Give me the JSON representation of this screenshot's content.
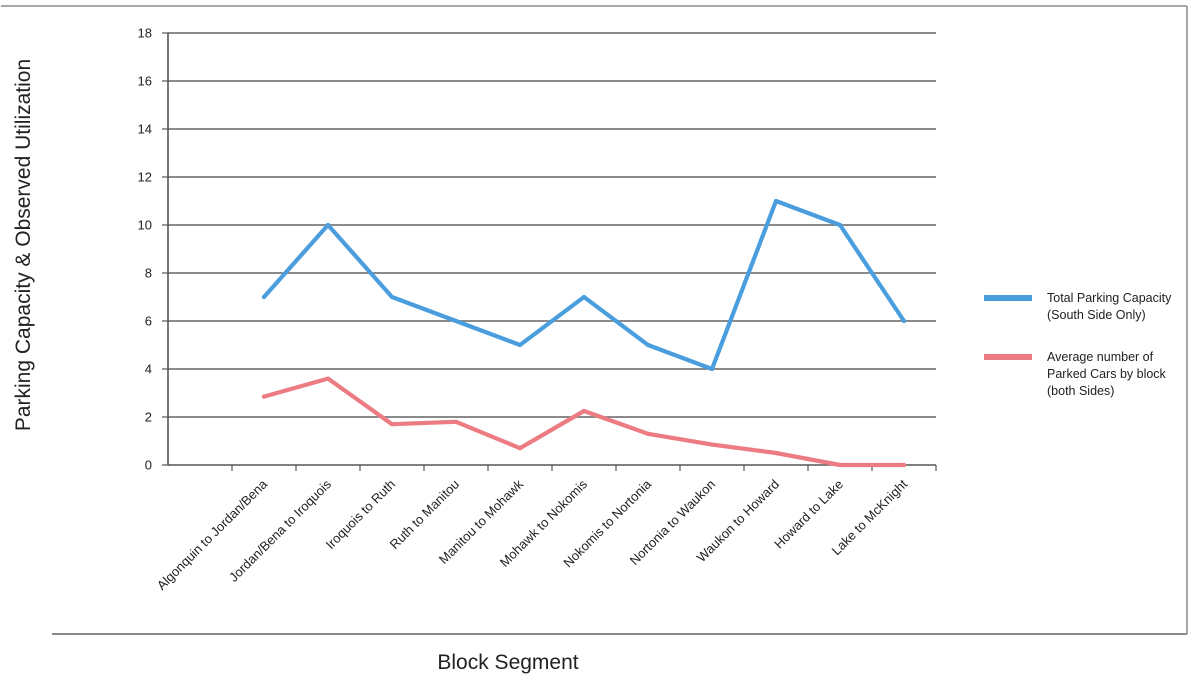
{
  "chart_data": {
    "type": "line",
    "title": "",
    "xlabel": "Block Segment",
    "ylabel": "Parking Capacity & Observed Utilization",
    "ylim": [
      0,
      18
    ],
    "yticks": [
      0,
      2,
      4,
      6,
      8,
      10,
      12,
      14,
      16,
      18
    ],
    "grid": true,
    "legend_position": "right",
    "categories": [
      "Algonquin to Jordan/Bena",
      "Jordan/Bena to Iroquois",
      "Iroquois to Ruth",
      "Ruth to Manitou",
      "Manitou to Mohawk",
      "Mohawk to Nokomis",
      "Nokomis to Nortonia",
      "Nortonia to Waukon",
      "Waukon to Howard",
      "Howard to Lake",
      "Lake to McKnight"
    ],
    "series": [
      {
        "name_lines": [
          "Total Parking Capacity",
          "(South Side Only)"
        ],
        "color": "#4a9ede",
        "values": [
          7,
          10,
          7,
          6,
          5,
          7,
          5,
          4,
          11,
          10,
          6
        ]
      },
      {
        "name_lines": [
          "Average number of",
          "Parked Cars by block",
          "(both Sides)"
        ],
        "color": "#ec7b82",
        "values": [
          2.85,
          3.6,
          1.7,
          1.8,
          0.7,
          2.25,
          1.3,
          0.85,
          0.5,
          0.0,
          0.0
        ]
      }
    ]
  }
}
